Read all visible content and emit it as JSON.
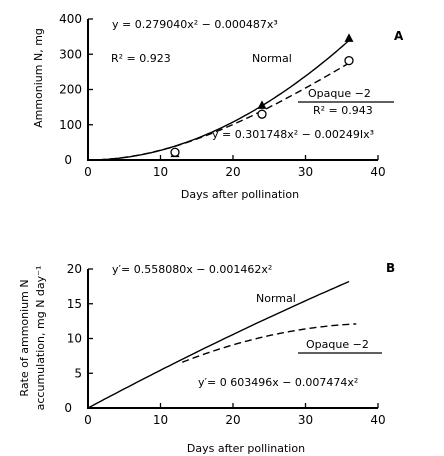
{
  "chart_data": [
    {
      "type": "scatter",
      "panel": "A",
      "xlabel": "Days after pollination",
      "ylabel": "Ammonium N, mg",
      "xlim": [
        0,
        40
      ],
      "ylim": [
        0,
        400
      ],
      "xticks": [
        0,
        10,
        20,
        30,
        40
      ],
      "yticks": [
        100,
        200,
        300,
        400
      ],
      "series": [
        {
          "name": "Normal",
          "marker": "triangle",
          "points": [
            {
              "x": 12,
              "y": 18
            },
            {
              "x": 24,
              "y": 155
            },
            {
              "x": 36,
              "y": 345
            }
          ],
          "fit": {
            "style": "solid",
            "c2": 0.27904,
            "c3": -0.000487,
            "equation": "y = 0.279040x² − 0.000487x³",
            "r2_label": "R² = 0.923"
          }
        },
        {
          "name": "Opaque −2",
          "marker": "circle",
          "points": [
            {
              "x": 12,
              "y": 22
            },
            {
              "x": 24,
              "y": 130
            },
            {
              "x": 36,
              "y": 282
            }
          ],
          "fit": {
            "style": "dashed",
            "c2": 0.301748,
            "c3": -0.002491,
            "equation": "y = 0.301748x² − 0.002491x³",
            "r2_label": "R² = 0.943"
          }
        }
      ]
    },
    {
      "type": "line",
      "panel": "B",
      "xlabel": "Days after pollination",
      "ylabel": "Rate of ammonium N accumulation, mg N day⁻¹",
      "xlim": [
        0,
        40
      ],
      "ylim": [
        0,
        20
      ],
      "xticks": [
        0,
        10,
        20,
        30,
        40
      ],
      "yticks": [
        5,
        10,
        15,
        20
      ],
      "series": [
        {
          "name": "Normal",
          "style": "solid",
          "a": 0.55808,
          "b": -0.001462,
          "equation": "y′ = 0.558080x − 0.001462x²"
        },
        {
          "name": "Opaque −2",
          "style": "dashed",
          "a": 0.603496,
          "b": -0.007474,
          "equation": "y′ = 0.603496x − 0.007474x²"
        }
      ]
    }
  ],
  "labels": {
    "panel_a": {
      "letter": "A",
      "eq_normal": "y = 0.279040x² − 0.000487x³",
      "r2_normal": "R² = 0.923",
      "name_normal": "Normal",
      "name_opaque": "Opaque −2",
      "r2_opaque": "R² = 0.943",
      "eq_opaque": "y = 0.301748x² − 0.00249Ix³",
      "xlabel": "Days after pollination",
      "ylabel": "Ammonium N, mg"
    },
    "panel_b": {
      "letter": "B",
      "eq_normal": "y′= 0.558080x − 0.001462x²",
      "name_normal": "Normal",
      "name_opaque": "Opaque −2",
      "eq_opaque": "y′= 0 603496x − 0.007474x²",
      "xlabel": "Days after pollination",
      "ylabel_line1": "Rate of ammonium N",
      "ylabel_line2": "accumulation, mg N day⁻¹"
    }
  }
}
